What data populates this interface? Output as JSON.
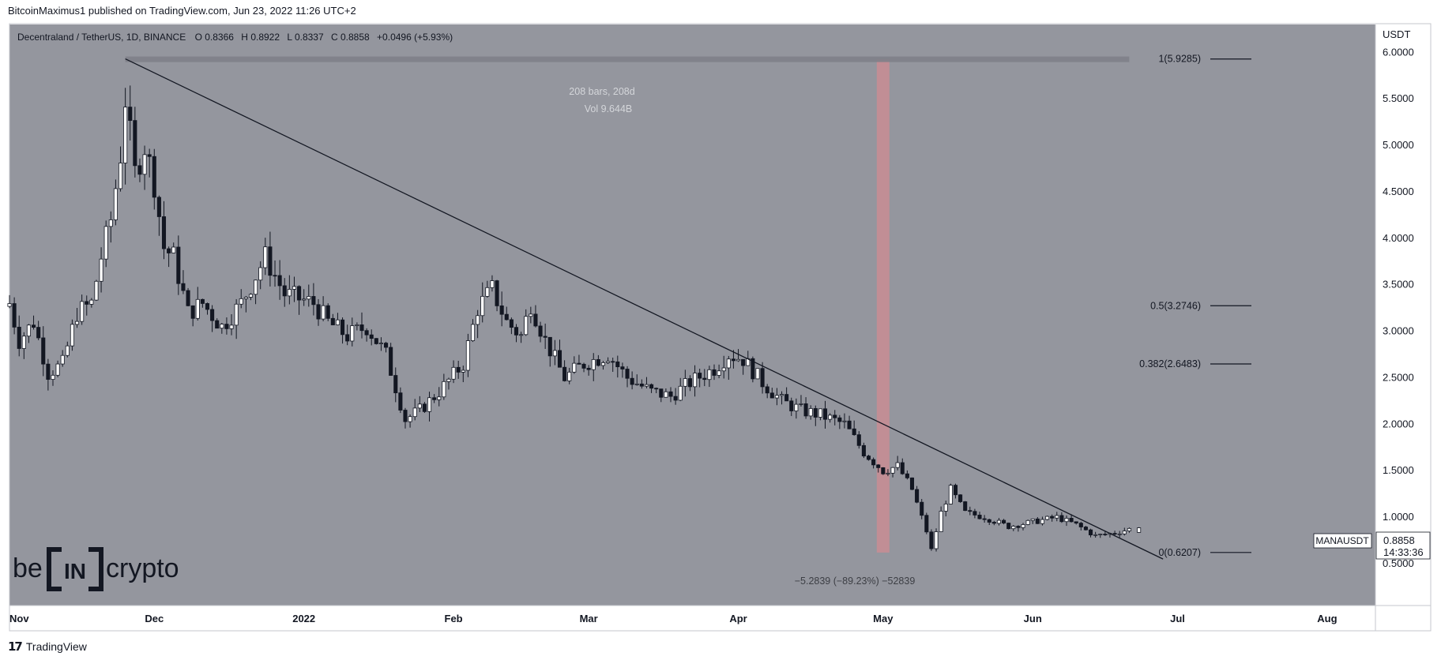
{
  "header": {
    "publisher_line": "BitcoinMaximus1 published on TradingView.com, Jun 23, 2022 11:26 UTC+2"
  },
  "legend": {
    "symbol_title": "Decentraland / TetherUS, 1D, BINANCE",
    "open_key": "O",
    "open": "0.8366",
    "high_key": "H",
    "high": "0.8922",
    "low_key": "L",
    "low": "0.8337",
    "close_key": "C",
    "close": "0.8858",
    "change": "+0.0496 (+5.93%)"
  },
  "price_axis": {
    "currency": "USDT",
    "ticks": [
      "6.0000",
      "5.5000",
      "5.0000",
      "4.5000",
      "4.0000",
      "3.5000",
      "3.0000",
      "2.5000",
      "2.0000",
      "1.5000",
      "1.0000",
      "0.5000"
    ]
  },
  "time_axis": {
    "ticks": [
      "Nov",
      "Dec",
      "2022",
      "Feb",
      "Mar",
      "Apr",
      "May",
      "Jun",
      "Jul",
      "Aug"
    ]
  },
  "price_tag": {
    "symbol": "MANAUSDT",
    "price": "0.8858",
    "countdown": "14:33:36"
  },
  "measure_tool": {
    "bars_label": "208 bars, 208d",
    "volume_label": "Vol 9.644B",
    "result_label": "−5.2839 (−89.23%) −52839"
  },
  "fib_levels": [
    {
      "label": "1(5.9285)",
      "value": 5.9285
    },
    {
      "label": "0.5(3.2746)",
      "value": 3.2746
    },
    {
      "label": "0.382(2.6483)",
      "value": 2.6483
    },
    {
      "label": "0(0.6207)",
      "value": 0.6207
    }
  ],
  "watermark": {
    "text_left": "be",
    "text_mid": "IN",
    "text_right": "crypto"
  },
  "footer": {
    "brand": "TradingView"
  },
  "colors": {
    "chart_bg": "#94969e",
    "candle_up": "#ffffff",
    "candle_down": "#131722",
    "trendline": "#131722",
    "highlight_band": "#c98d93",
    "measure_band": "#7e8088"
  },
  "chart_data": {
    "type": "candlestick",
    "symbol": "MANAUSDT",
    "interval": "1D",
    "ylim": [
      0.05,
      6.3
    ],
    "y_scale": "linear",
    "x_range": [
      "2021-11-01",
      "2022-08-11"
    ],
    "trendline": {
      "from": {
        "date": "2021-11-25",
        "price": 5.93
      },
      "to": {
        "date": "2022-06-28",
        "price": 0.55
      }
    },
    "highlight_band": {
      "date": "2022-05-01",
      "price_from": 0.62,
      "price_to": 5.93
    },
    "measure_range": {
      "from": "2021-11-25",
      "to": "2022-06-21",
      "price_from": 5.93,
      "price_to": 0.62
    },
    "series": [
      {
        "anchors": [
          [
            "2021-11-01",
            3.3
          ],
          [
            "2021-11-03",
            2.9
          ],
          [
            "2021-11-06",
            3.1
          ],
          [
            "2021-11-09",
            2.55
          ],
          [
            "2021-11-12",
            2.65
          ],
          [
            "2021-11-15",
            3.2
          ],
          [
            "2021-11-18",
            3.3
          ],
          [
            "2021-11-20",
            3.8
          ],
          [
            "2021-11-22",
            4.2
          ],
          [
            "2021-11-24",
            4.9
          ],
          [
            "2021-11-25",
            5.5
          ],
          [
            "2021-11-27",
            4.7
          ],
          [
            "2021-11-29",
            5.0
          ],
          [
            "2021-12-01",
            4.6
          ],
          [
            "2021-12-03",
            3.9
          ],
          [
            "2021-12-05",
            3.8
          ],
          [
            "2021-12-08",
            3.2
          ],
          [
            "2021-12-11",
            3.3
          ],
          [
            "2021-12-15",
            3.05
          ],
          [
            "2021-12-19",
            3.3
          ],
          [
            "2021-12-24",
            3.8
          ],
          [
            "2021-12-28",
            3.4
          ],
          [
            "2022-01-03",
            3.3
          ],
          [
            "2022-01-06",
            3.1
          ],
          [
            "2022-01-10",
            2.95
          ],
          [
            "2022-01-14",
            3.05
          ],
          [
            "2022-01-18",
            2.75
          ],
          [
            "2022-01-22",
            2.05
          ],
          [
            "2022-01-25",
            2.15
          ],
          [
            "2022-01-29",
            2.35
          ],
          [
            "2022-02-03",
            2.65
          ],
          [
            "2022-02-06",
            3.25
          ],
          [
            "2022-02-09",
            3.45
          ],
          [
            "2022-02-12",
            3.1
          ],
          [
            "2022-02-15",
            2.95
          ],
          [
            "2022-02-17",
            3.3
          ],
          [
            "2022-02-20",
            2.9
          ],
          [
            "2022-02-24",
            2.5
          ],
          [
            "2022-02-28",
            2.65
          ],
          [
            "2022-03-05",
            2.75
          ],
          [
            "2022-03-09",
            2.5
          ],
          [
            "2022-03-14",
            2.35
          ],
          [
            "2022-03-18",
            2.3
          ],
          [
            "2022-03-22",
            2.45
          ],
          [
            "2022-03-27",
            2.6
          ],
          [
            "2022-03-30",
            2.75
          ],
          [
            "2022-04-02",
            2.7
          ],
          [
            "2022-04-06",
            2.45
          ],
          [
            "2022-04-10",
            2.25
          ],
          [
            "2022-04-14",
            2.15
          ],
          [
            "2022-04-18",
            2.1
          ],
          [
            "2022-04-23",
            2.0
          ],
          [
            "2022-04-27",
            1.7
          ],
          [
            "2022-05-01",
            1.5
          ],
          [
            "2022-05-04",
            1.55
          ],
          [
            "2022-05-07",
            1.3
          ],
          [
            "2022-05-10",
            0.85
          ],
          [
            "2022-05-11",
            0.65
          ],
          [
            "2022-05-13",
            1.05
          ],
          [
            "2022-05-15",
            1.3
          ],
          [
            "2022-05-18",
            1.05
          ],
          [
            "2022-05-22",
            1.0
          ],
          [
            "2022-05-27",
            0.9
          ],
          [
            "2022-06-01",
            0.95
          ],
          [
            "2022-06-06",
            1.0
          ],
          [
            "2022-06-10",
            0.92
          ],
          [
            "2022-06-14",
            0.8
          ],
          [
            "2022-06-18",
            0.83
          ],
          [
            "2022-06-22",
            0.8858
          ]
        ],
        "last_candle": {
          "date": "2022-06-23",
          "open": 0.8366,
          "high": 0.8922,
          "low": 0.8337,
          "close": 0.8858
        }
      }
    ]
  }
}
